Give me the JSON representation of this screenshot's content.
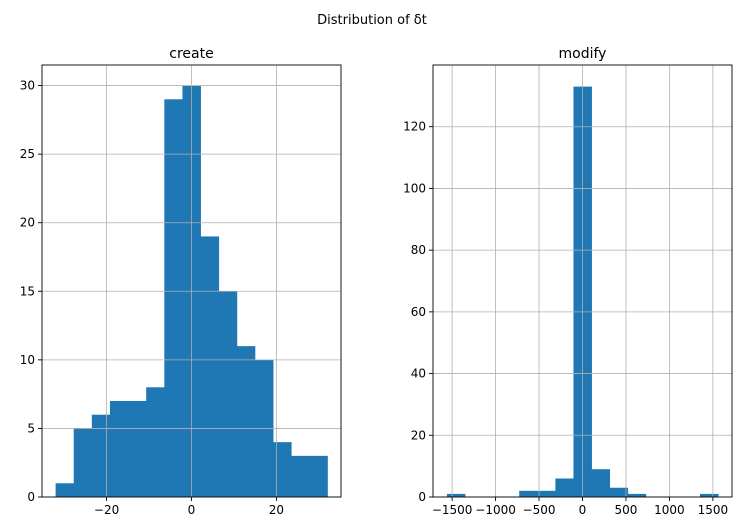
{
  "title": "Distribution of δt",
  "chart_data": [
    {
      "type": "bar",
      "title": "create",
      "grid": true,
      "bar_color": "#1f77b4",
      "xlim": [
        -35.2,
        35.2
      ],
      "ylim": [
        0,
        31.5
      ],
      "xticks": [
        -20,
        0,
        20
      ],
      "xtick_labels": [
        "−20",
        "0",
        "20"
      ],
      "yticks": [
        0,
        5,
        10,
        15,
        20,
        25,
        30
      ],
      "ytick_labels": [
        "0",
        "5",
        "10",
        "15",
        "20",
        "25",
        "30"
      ],
      "bin_edges": [
        -32,
        -27.73,
        -23.47,
        -19.2,
        -14.93,
        -10.67,
        -6.4,
        -2.13,
        2.13,
        6.4,
        10.67,
        14.93,
        19.2,
        23.47,
        27.73,
        32
      ],
      "values": [
        1,
        5,
        6,
        7,
        7,
        8,
        29,
        30,
        19,
        15,
        11,
        10,
        4,
        3,
        3
      ]
    },
    {
      "type": "bar",
      "title": "modify",
      "grid": true,
      "bar_color": "#1f77b4",
      "xlim": [
        -1720,
        1720
      ],
      "ylim": [
        0,
        140
      ],
      "xticks": [
        -1500,
        -1000,
        -500,
        0,
        500,
        1000,
        1500
      ],
      "xtick_labels": [
        "−1500",
        "−1000",
        "−500",
        "0",
        "500",
        "1000",
        "1500"
      ],
      "yticks": [
        0,
        20,
        40,
        60,
        80,
        100,
        120
      ],
      "ytick_labels": [
        "0",
        "20",
        "40",
        "60",
        "80",
        "100",
        "120"
      ],
      "bin_edges": [
        -1560,
        -1352,
        -1144,
        -936,
        -728,
        -520,
        -312,
        -104,
        104,
        312,
        520,
        728,
        936,
        1144,
        1352,
        1560
      ],
      "values": [
        1,
        0,
        0,
        0,
        2,
        2,
        6,
        133,
        9,
        3,
        1,
        0,
        0,
        0,
        1
      ]
    }
  ]
}
